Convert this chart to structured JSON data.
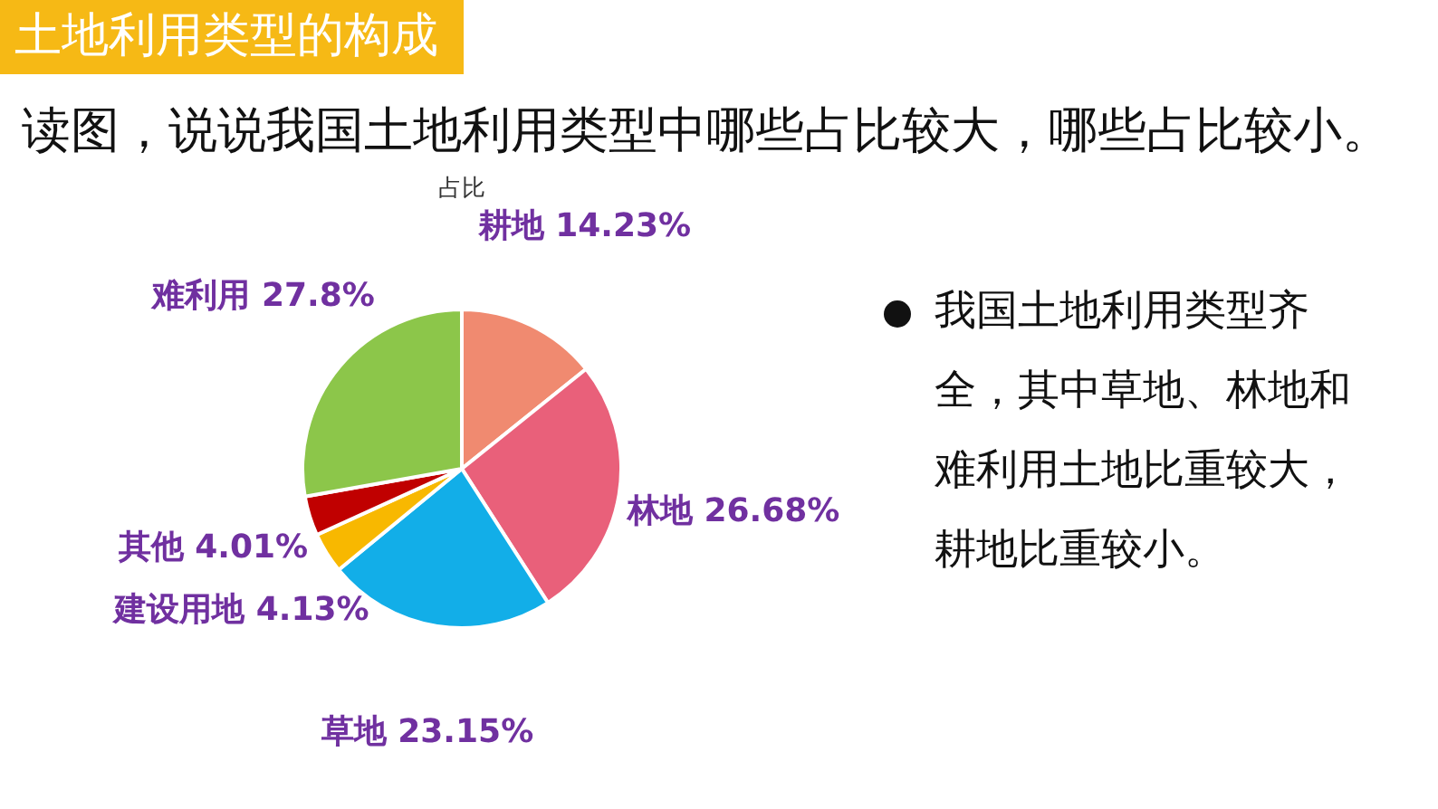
{
  "chart_data": {
    "type": "pie",
    "title": "占比",
    "categories": [
      "耕地",
      "林地",
      "草地",
      "建设用地",
      "其他",
      "难利用"
    ],
    "values": [
      14.23,
      26.68,
      23.15,
      4.13,
      4.01,
      27.8
    ],
    "value_labels": [
      "14.23%",
      "26.68%",
      "23.15%",
      "4.13%",
      "4.01%",
      "27.8%"
    ],
    "colors": [
      "#f08a70",
      "#e9607a",
      "#12aee8",
      "#f8b800",
      "#c00000",
      "#8cc64a"
    ],
    "annotations": [
      "土地利用类型的构成",
      "读图，说说我国土地利用类型中哪些占比较大，哪些占比较小。",
      "我国土地利用类型齐全，其中草地、林地和难利用土地比重较大，耕地比重较小。"
    ]
  }
}
